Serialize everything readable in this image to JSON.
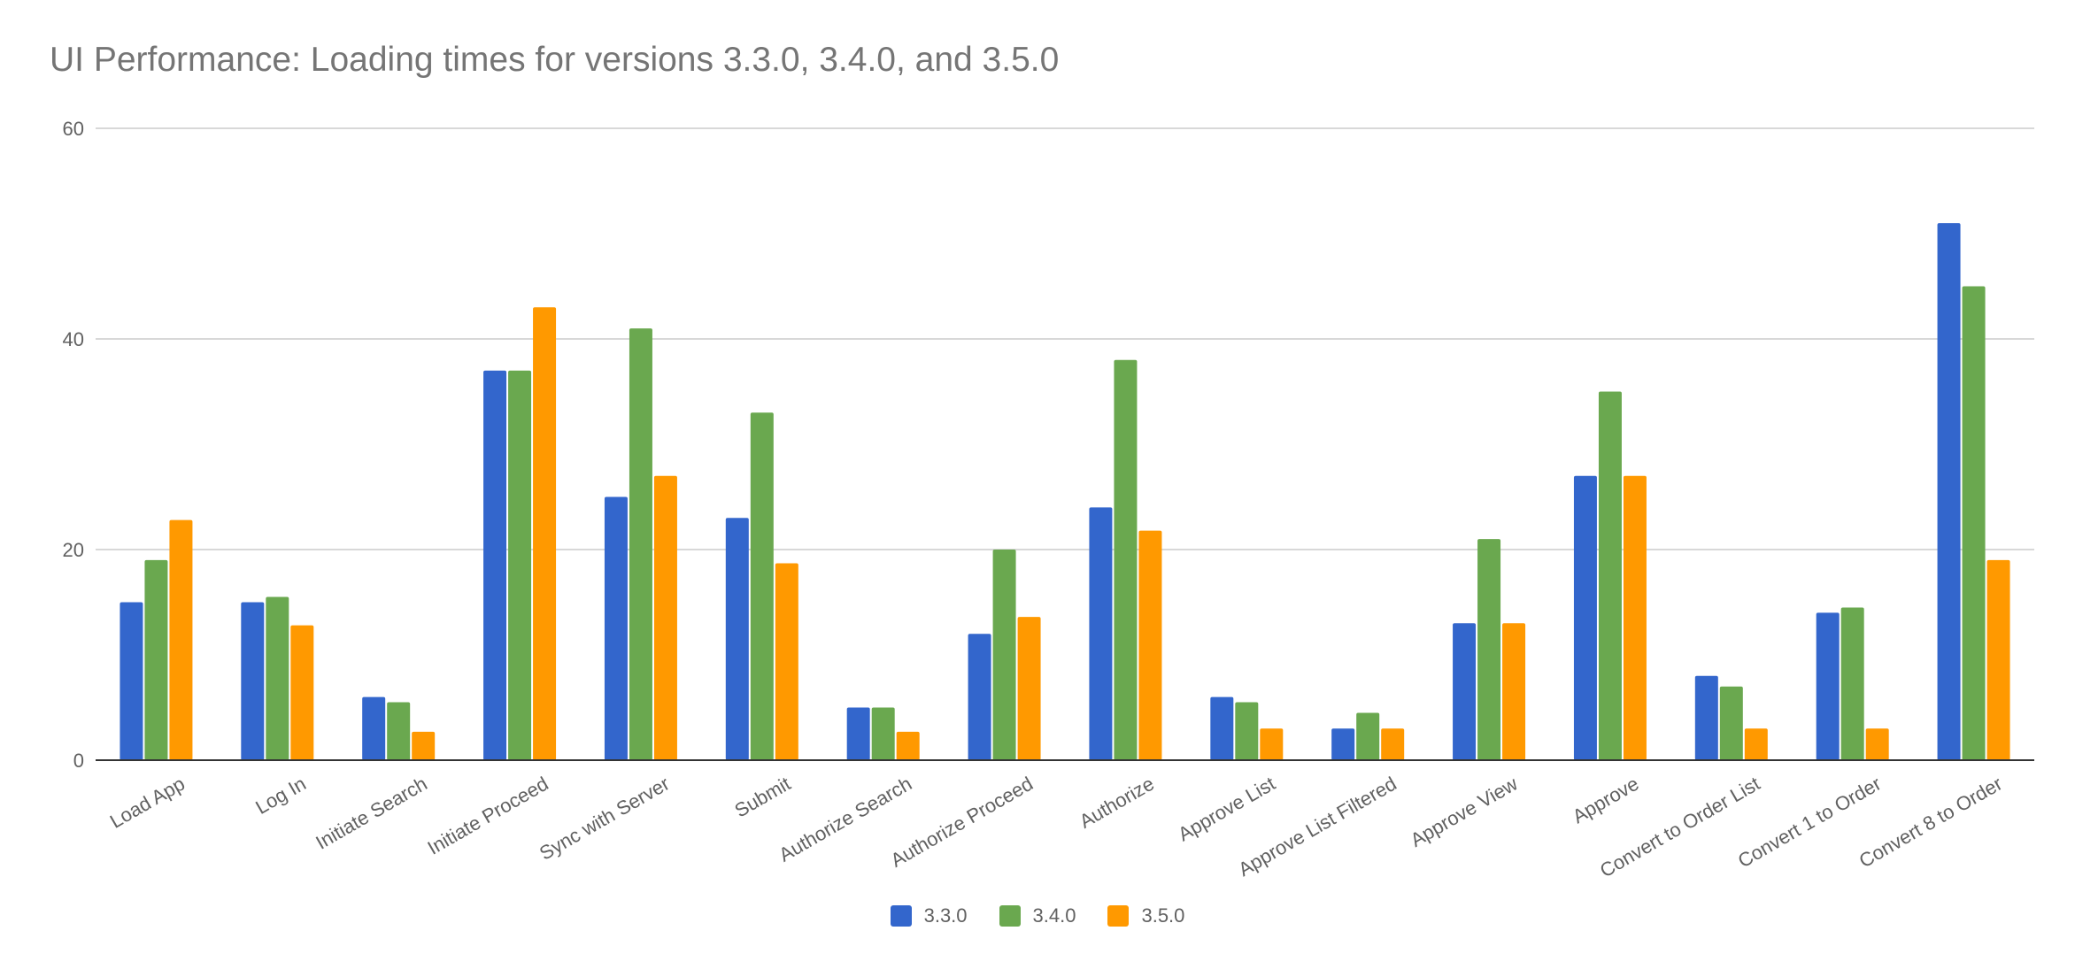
{
  "chart_data": {
    "type": "bar",
    "title": "UI Performance: Loading times for versions 3.3.0, 3.4.0, and 3.5.0",
    "xlabel": "",
    "ylabel": "",
    "ylim": [
      0,
      60
    ],
    "yticks": [
      0,
      20,
      40,
      60
    ],
    "grid": true,
    "legend_position": "bottom",
    "categories": [
      "Load App",
      "Log In",
      "Initiate Search",
      "Initiate Proceed",
      "Sync with Server",
      "Submit",
      "Authorize Search",
      "Authorize Proceed",
      "Authorize",
      "Approve List",
      "Approve List Filtered",
      "Approve View",
      "Approve",
      "Convert to Order List",
      "Convert 1 to Order",
      "Convert 8 to Order"
    ],
    "series": [
      {
        "name": "3.3.0",
        "color": "#3366cc",
        "values": [
          15,
          15,
          6,
          37,
          25,
          23,
          5,
          12,
          24,
          6,
          3,
          13,
          27,
          8,
          14,
          51
        ]
      },
      {
        "name": "3.4.0",
        "color": "#6aa84f",
        "values": [
          19,
          15.5,
          5.5,
          37,
          41,
          33,
          5,
          20,
          38,
          5.5,
          4.5,
          21,
          35,
          7,
          14.5,
          45
        ]
      },
      {
        "name": "3.5.0",
        "color": "#ff9900",
        "values": [
          22.8,
          12.8,
          2.7,
          43,
          27,
          18.7,
          2.7,
          13.6,
          21.8,
          3,
          3,
          13,
          27,
          3,
          3,
          19
        ]
      }
    ]
  }
}
